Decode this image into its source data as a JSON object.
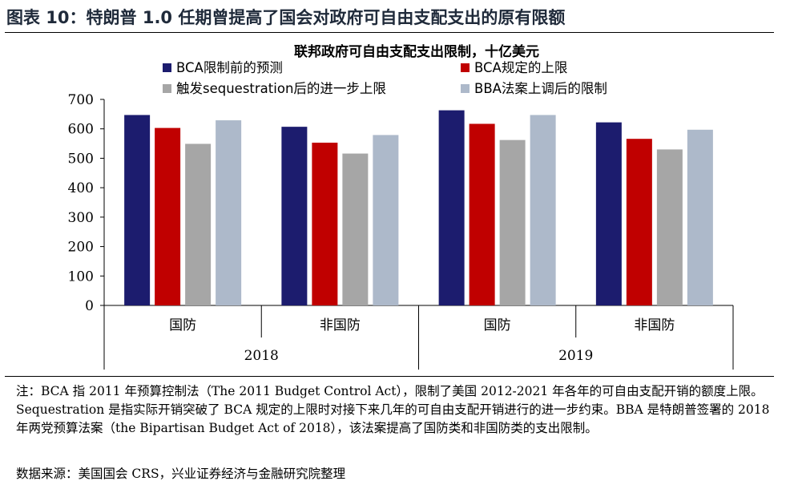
{
  "figure": {
    "title": "图表 10：特朗普 1.0 任期曾提高了国会对政府可自由支配支出的原有限额",
    "note": "注：BCA 指 2011 年预算控制法（The 2011 Budget Control Act），限制了美国 2012-2021 年各年的可自由支配开销的额度上限。Sequestration 是指实际开销突破了 BCA 规定的上限时对接下来几年的可自由支配开销进行的进一步约束。BBA 是特朗普签署的 2018 年两党预算法案（the Bipartisan Budget Act of 2018），该法案提高了国防类和非国防类的支出限制。",
    "source": "数据来源：美国国会 CRS，兴业证券经济与金融研究院整理"
  },
  "chart_data": {
    "type": "bar",
    "title": "联邦政府可自由支配支出限制，十亿美元",
    "categories": [
      "国防",
      "非国防",
      "国防",
      "非国防"
    ],
    "groups": [
      {
        "label": "2018",
        "span": [
          0,
          1
        ]
      },
      {
        "label": "2019",
        "span": [
          2,
          3
        ]
      }
    ],
    "series": [
      {
        "name": "BCA限制前的预测",
        "color": "#1c1c6e",
        "values": [
          647,
          607,
          663,
          622
        ]
      },
      {
        "name": "BCA规定的上限",
        "color": "#c00000",
        "values": [
          603,
          553,
          617,
          566
        ]
      },
      {
        "name": "触发sequestration后的进一步上限",
        "color": "#a6a6a6",
        "values": [
          549,
          516,
          562,
          530
        ]
      },
      {
        "name": "BBA法案上调后的限制",
        "color": "#adb9ca",
        "values": [
          629,
          579,
          647,
          597
        ]
      }
    ],
    "yticks": [
      "0",
      "100",
      "200",
      "300",
      "400",
      "500",
      "600",
      "700"
    ],
    "ylim": [
      0,
      700
    ],
    "grid": false,
    "legend_position": "top"
  }
}
